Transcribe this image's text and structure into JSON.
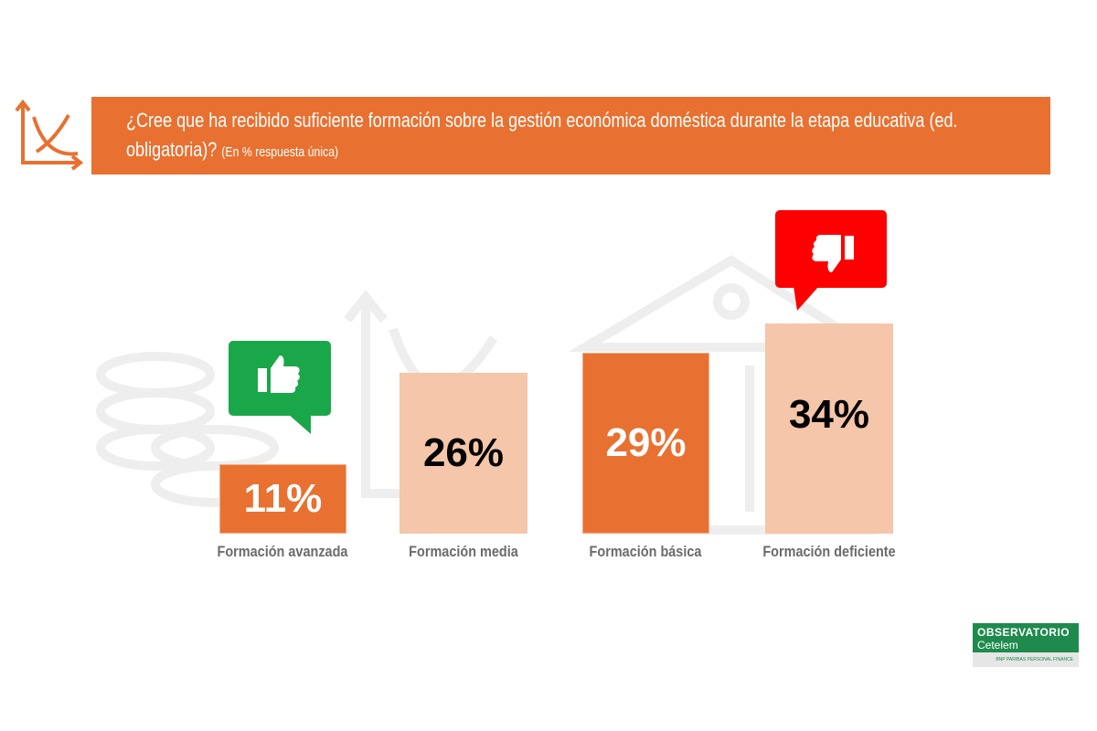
{
  "header": {
    "title": "¿Cree que ha recibido suficiente formación sobre la gestión económica doméstica durante la etapa educativa (ed. obligatoria)?",
    "subtitle": "(En % respuesta única)"
  },
  "colors": {
    "dark": "#E87131",
    "light": "#F5C6A9",
    "good": "#1AA74A",
    "bad": "#FF0000"
  },
  "chart_data": {
    "type": "bar",
    "title": "¿Cree que ha recibido suficiente formación sobre la gestión económica doméstica durante la etapa educativa (ed. obligatoria)?",
    "categories": [
      "Formación avanzada",
      "Formación media",
      "Formación básica",
      "Formación deficiente"
    ],
    "values": [
      11,
      26,
      29,
      34
    ],
    "labels": [
      "11%",
      "26%",
      "29%",
      "34%"
    ],
    "ylim": [
      0,
      34
    ],
    "unit": "%"
  },
  "logo": {
    "line1": "OBSERVATORIO",
    "line2": "Cetelem",
    "sub": "BNP PARIBAS PERSONAL FINANCE"
  }
}
